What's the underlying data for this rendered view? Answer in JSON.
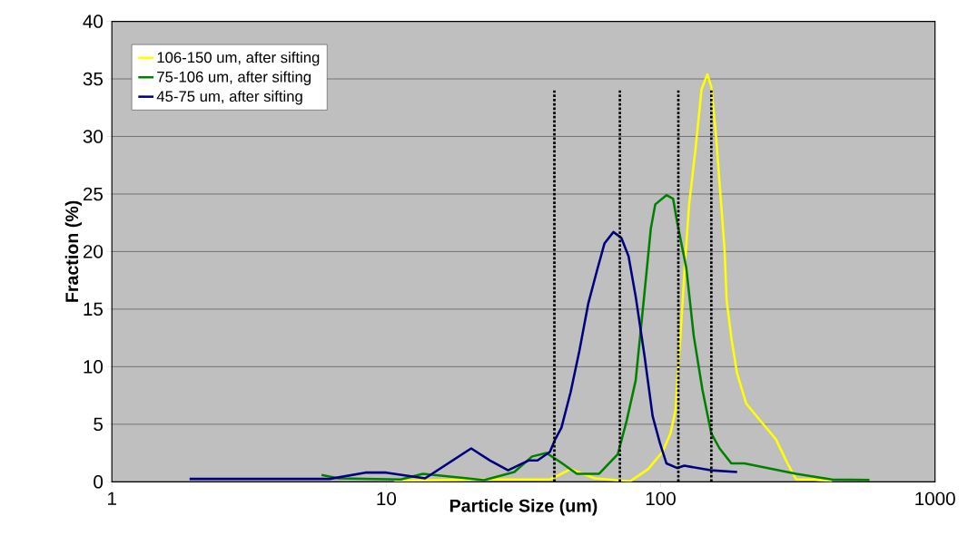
{
  "chart_data": {
    "type": "line",
    "xlabel": "Particle Size (um)",
    "ylabel": "Fraction (%)",
    "log": "x",
    "grid": "y",
    "legend": "top left",
    "marker": "none",
    "xlim": [
      1,
      1000
    ],
    "xticks": [
      1,
      10,
      100,
      1000
    ],
    "ylim": [
      0,
      40
    ],
    "yticks": [
      0,
      5,
      10,
      15,
      20,
      25,
      30,
      35,
      40
    ],
    "series": [
      {
        "name": "106-150 um, after sifting",
        "color": "#ffff00",
        "x": [
          10.7,
          23.9,
          39.5,
          47.0,
          57.5,
          77.5,
          90.0,
          101.6,
          108.6,
          113.5,
          115,
          118,
          122,
          127,
          134,
          141,
          148,
          153,
          159,
          165,
          171,
          174,
          181,
          190,
          205,
          231,
          263,
          290,
          312,
          362,
          421
        ],
        "values": [
          0.1,
          0.2,
          0.2,
          1.1,
          0.3,
          0.05,
          1.1,
          2.6,
          4.2,
          6.3,
          8.8,
          12.5,
          18.1,
          24.1,
          28.9,
          34.1,
          35.4,
          34.3,
          30.2,
          25.1,
          20.2,
          15.8,
          12.5,
          9.4,
          6.8,
          5.3,
          3.7,
          1.6,
          0.2,
          0.2,
          0.05
        ]
      },
      {
        "name": "75-106 um, after sifting",
        "color": "#008000",
        "x": [
          5.81,
          6.7,
          11.3,
          13.6,
          22.7,
          29.3,
          34.0,
          38.4,
          42.6,
          49.5,
          59.7,
          69.8,
          75.2,
          81.1,
          87.4,
          92.1,
          95.6,
          105,
          111,
          115,
          124,
          132,
          142,
          153,
          164,
          181,
          202,
          312,
          421,
          577
        ],
        "values": [
          0.6,
          0.3,
          0.2,
          0.7,
          0.15,
          0.85,
          2.2,
          2.5,
          1.8,
          0.7,
          0.7,
          2.4,
          5.3,
          8.8,
          16.5,
          22.0,
          24.1,
          24.9,
          24.6,
          22.5,
          18.6,
          12.7,
          8.0,
          4.2,
          2.9,
          1.6,
          1.6,
          0.7,
          0.2,
          0.15
        ]
      },
      {
        "name": "45-75 um, after sifting",
        "color": "#000080",
        "x": [
          1.92,
          6.22,
          8.39,
          10,
          13.85,
          20.4,
          23.9,
          27.8,
          33.0,
          35.6,
          39.5,
          41.3,
          43.5,
          47.0,
          50.6,
          54.5,
          58.7,
          62.4,
          67.3,
          71.9,
          76.4,
          81.1,
          87.4,
          93.5,
          99.3,
          105,
          115,
          122,
          152,
          190
        ],
        "values": [
          0.25,
          0.25,
          0.8,
          0.8,
          0.3,
          2.9,
          1.85,
          1.0,
          1.85,
          1.85,
          2.6,
          3.7,
          4.7,
          7.8,
          11.4,
          15.5,
          18.4,
          20.7,
          21.7,
          21.2,
          19.6,
          16.1,
          10.9,
          5.7,
          3.4,
          1.6,
          1.2,
          1.4,
          1.0,
          0.85
        ]
      },
      {
        "color": "#000000",
        "line_style": "dotted",
        "x": [
          41,
          41
        ],
        "values": [
          0,
          34
        ]
      },
      {
        "color": "#000000",
        "line_style": "dotted",
        "x": [
          71,
          71
        ],
        "values": [
          0,
          34
        ]
      },
      {
        "color": "#000000",
        "line_style": "dotted",
        "x": [
          116,
          116
        ],
        "values": [
          0,
          34
        ]
      },
      {
        "color": "#000000",
        "line_style": "dotted",
        "x": [
          153,
          153
        ],
        "values": [
          0,
          34
        ]
      }
    ]
  }
}
